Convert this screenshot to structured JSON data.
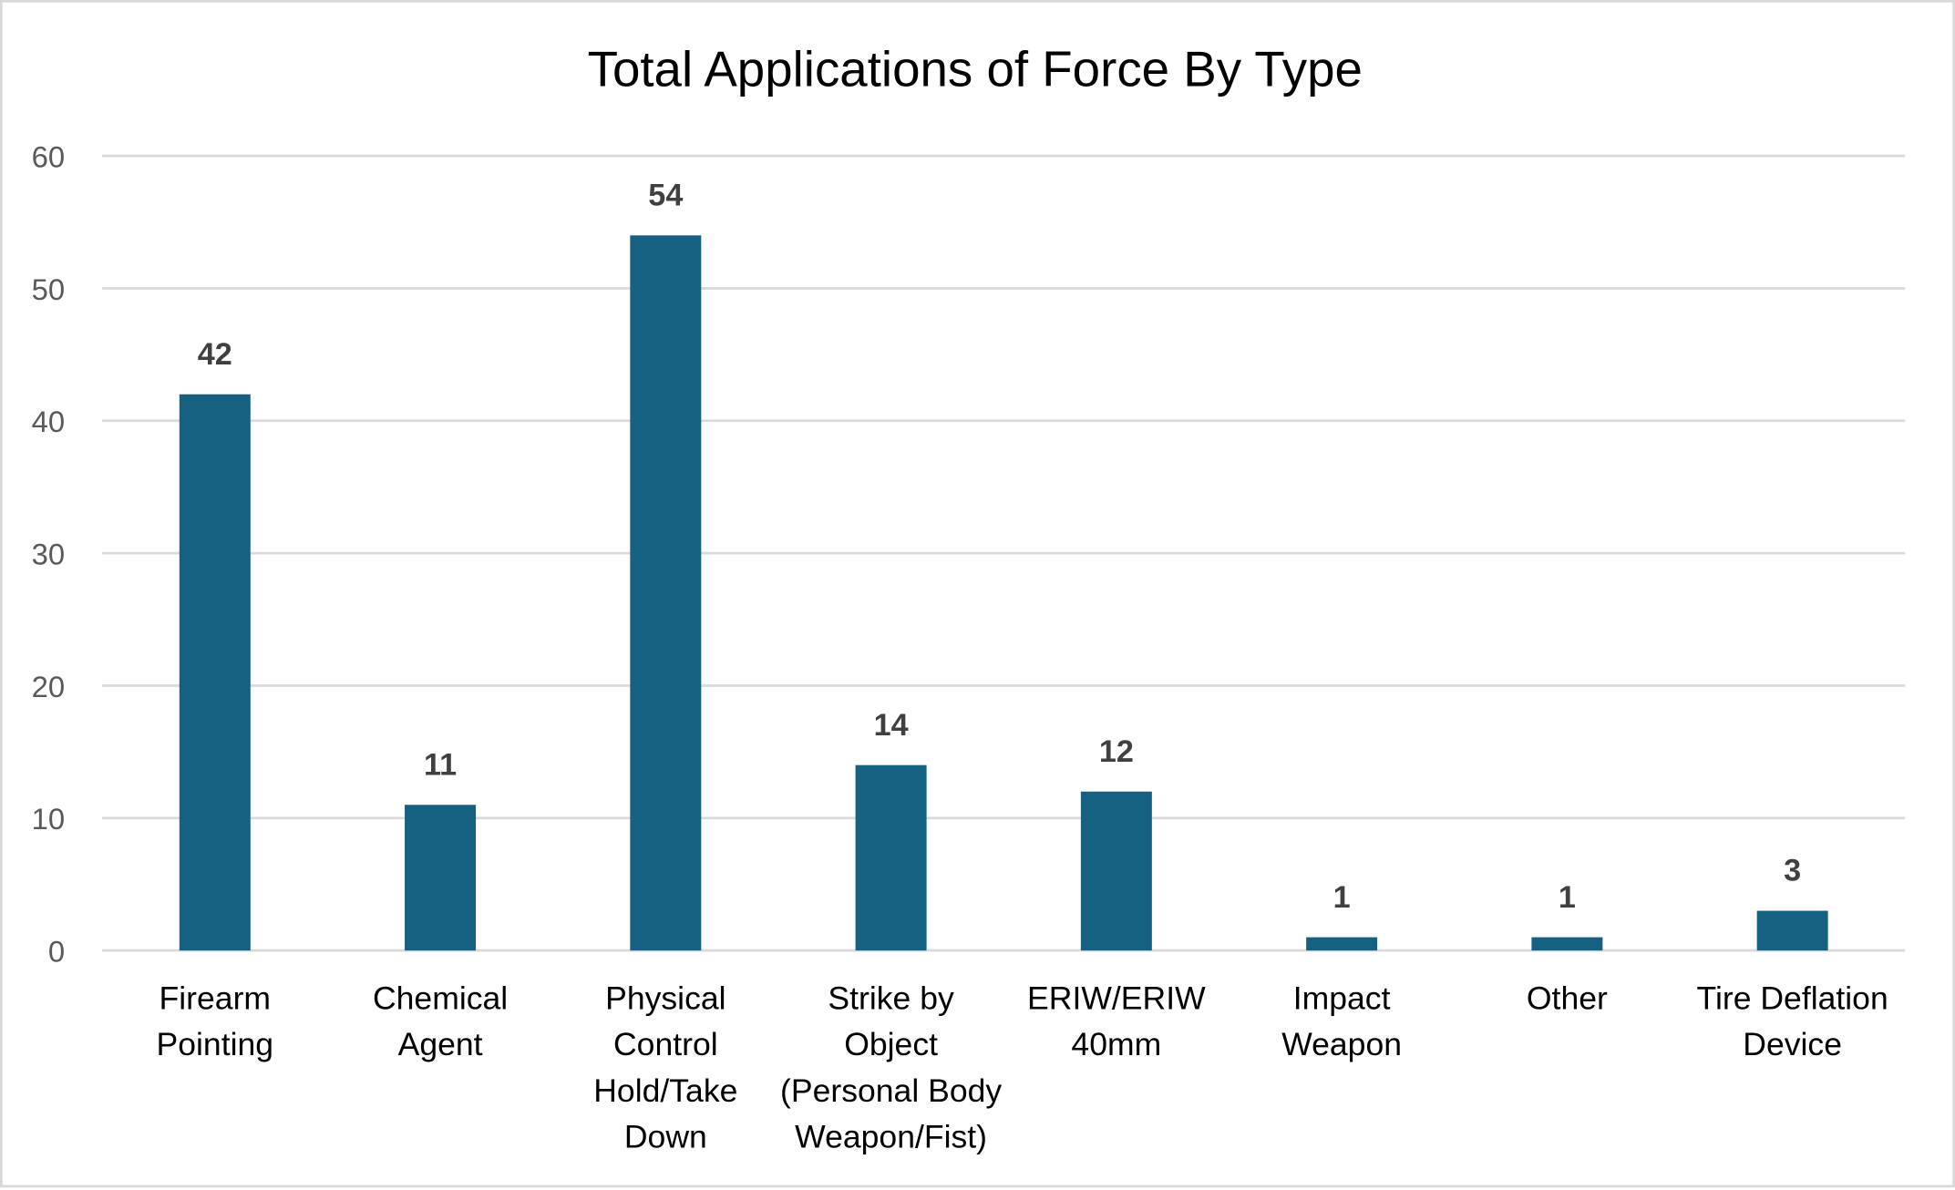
{
  "chart_data": {
    "type": "bar",
    "title": "Total Applications of Force By Type",
    "xlabel": "",
    "ylabel": "",
    "categories": [
      [
        "Firearm",
        "Pointing"
      ],
      [
        "Chemical",
        "Agent"
      ],
      [
        "Physical",
        "Control",
        "Hold/Take",
        "Down"
      ],
      [
        "Strike by",
        "Object",
        "(Personal Body",
        "Weapon/Fist)"
      ],
      [
        "ERIW/ERIW",
        "40mm"
      ],
      [
        "Impact",
        "Weapon"
      ],
      [
        "Other"
      ],
      [
        "Tire Deflation",
        "Device"
      ]
    ],
    "values": [
      42,
      11,
      54,
      14,
      12,
      1,
      1,
      3
    ],
    "data_labels": [
      "42",
      "11",
      "54",
      "14",
      "12",
      "1",
      "1",
      "3"
    ],
    "ylim": [
      0,
      60
    ],
    "yticks": [
      "0",
      "10",
      "20",
      "30",
      "40",
      "50",
      "60"
    ],
    "grid": true,
    "legend": "none",
    "colors": {
      "bar": "#166082",
      "grid": "#d9d9d9",
      "tick_text": "#595959",
      "data_label": "#404040",
      "title": "#000000"
    }
  }
}
